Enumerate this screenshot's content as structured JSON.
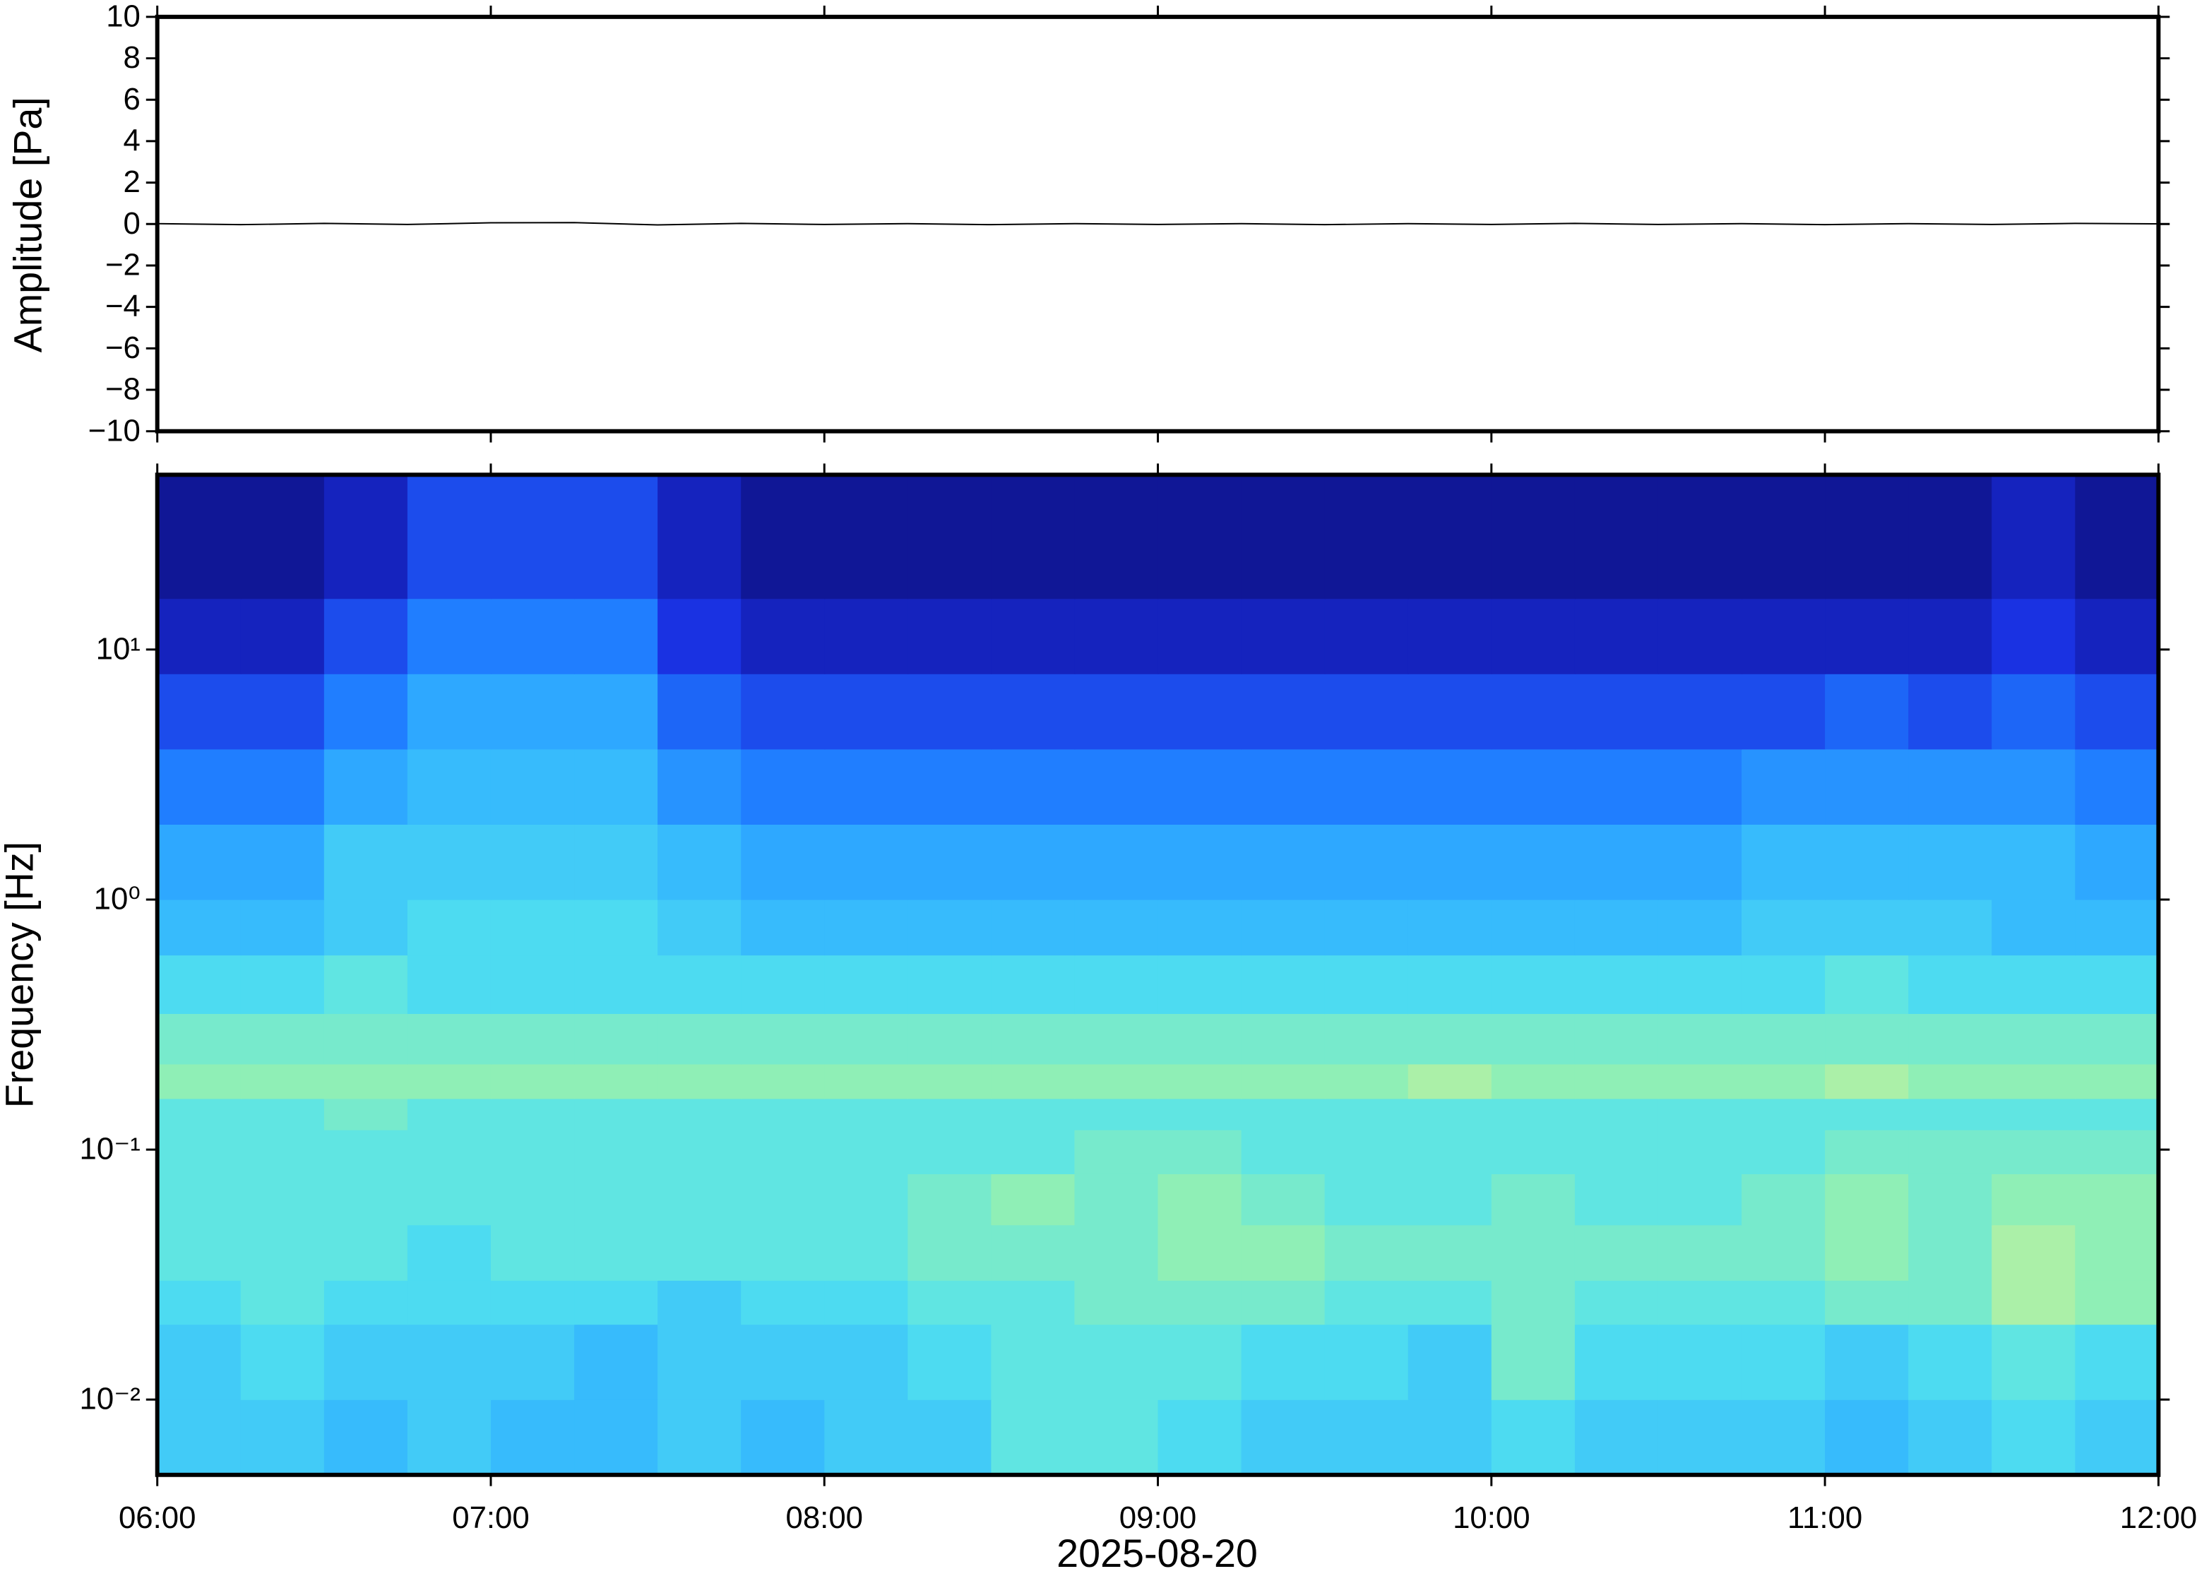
{
  "chart_data": [
    {
      "type": "line",
      "ylabel": "Amplitude [Pa]",
      "color": "#000000",
      "x": [
        6,
        6.25,
        6.5,
        6.75,
        7,
        7.25,
        7.5,
        7.75,
        8,
        8.25,
        8.5,
        8.75,
        9,
        9.25,
        9.5,
        9.75,
        10,
        10.25,
        10.5,
        10.75,
        11,
        11.25,
        11.5,
        11.75,
        12
      ],
      "values": [
        0.02,
        -0.03,
        0.03,
        -0.02,
        0.06,
        0.07,
        -0.04,
        0.03,
        -0.02,
        0.02,
        -0.03,
        0.02,
        -0.02,
        0.02,
        -0.03,
        0.02,
        -0.02,
        0.03,
        -0.02,
        0.02,
        -0.03,
        0.02,
        -0.02,
        0.03,
        0.01
      ],
      "xlim": [
        6,
        12
      ],
      "ylim": [
        -10,
        10
      ],
      "yticks": [
        {
          "value": -10,
          "label": "−10"
        },
        {
          "value": -8,
          "label": "−8"
        },
        {
          "value": -6,
          "label": "−6"
        },
        {
          "value": -4,
          "label": "−4"
        },
        {
          "value": -2,
          "label": "−2"
        },
        0,
        2,
        4,
        6,
        8,
        10
      ]
    },
    {
      "type": "heatmap",
      "ylabel": "Frequency [Hz]",
      "xlabel": "2025-08-20",
      "ylog": true,
      "xlim": [
        6,
        12
      ],
      "ylim": [
        0.005,
        50
      ],
      "xticks": [
        {
          "value": 6,
          "label": "06:00"
        },
        {
          "value": 7,
          "label": "07:00"
        },
        {
          "value": 8,
          "label": "08:00"
        },
        {
          "value": 9,
          "label": "09:00"
        },
        {
          "value": 10,
          "label": "10:00"
        },
        {
          "value": 11,
          "label": "11:00"
        },
        {
          "value": 12,
          "label": "12:00"
        }
      ],
      "yticks": [
        {
          "value": 0.01,
          "label": "10⁻²"
        },
        {
          "value": 0.1,
          "label": "10⁻¹"
        },
        {
          "value": 1,
          "label": "10⁰"
        },
        {
          "value": 10,
          "label": "10¹"
        }
      ],
      "colormap": [
        "#0a0a6e",
        "#1a2ee0",
        "#1e78ff",
        "#32b4ff",
        "#52e2ee",
        "#96f0b0",
        "#e8f08e",
        "#f8be6e"
      ],
      "zlim": [
        0,
        10
      ],
      "x": [
        6,
        6.25,
        6.5,
        6.75,
        7,
        7.25,
        7.5,
        7.75,
        8,
        8.25,
        8.5,
        8.75,
        9,
        9.25,
        9.5,
        9.75,
        10,
        10.25,
        10.5,
        10.75,
        11,
        11.25,
        11.5,
        11.75,
        12
      ],
      "y": [
        0.005,
        0.01,
        0.02,
        0.03,
        0.05,
        0.08,
        0.12,
        0.16,
        0.22,
        0.35,
        0.6,
        1,
        2,
        4,
        8,
        16,
        50
      ],
      "z": [
        [
          5,
          5,
          4.5,
          5,
          4.5,
          4.5,
          5,
          4.5,
          5,
          5,
          6,
          6,
          5.5,
          5,
          5,
          5,
          5.5,
          5,
          5,
          5,
          4.5,
          5,
          5.5,
          5
        ],
        [
          5,
          5.5,
          5,
          5,
          5,
          4.5,
          5,
          5,
          5,
          5.5,
          6,
          6,
          6,
          5.5,
          5.5,
          5,
          6.5,
          5.5,
          5.5,
          5.5,
          5,
          5.5,
          6,
          5.5
        ],
        [
          5.5,
          6,
          5.5,
          5.5,
          5.5,
          5.5,
          5,
          5.5,
          5.5,
          6,
          6,
          6.5,
          6.5,
          6.5,
          6,
          6,
          6.5,
          6,
          6,
          6,
          6.5,
          6.5,
          7.5,
          7
        ],
        [
          6,
          6,
          6,
          5.5,
          6,
          6,
          6,
          6,
          6,
          6.5,
          6.5,
          6.5,
          7,
          7,
          6.5,
          6.5,
          6.5,
          6.5,
          6.5,
          6.5,
          7,
          6.5,
          7.5,
          7
        ],
        [
          6,
          6,
          6,
          6,
          6,
          6,
          6,
          6,
          6,
          6.5,
          7,
          6.5,
          7,
          6.5,
          6,
          6,
          6.5,
          6,
          6,
          6.5,
          7,
          6.5,
          7,
          7
        ],
        [
          6,
          6,
          6,
          6,
          6,
          6,
          6,
          6,
          6,
          6,
          6,
          6.5,
          6.5,
          6,
          6,
          6,
          6,
          6,
          6,
          6,
          6.5,
          6.5,
          6.5,
          6.5
        ],
        [
          6,
          6,
          6.5,
          6,
          6,
          6,
          6,
          6,
          6,
          6,
          6,
          6,
          6,
          6,
          6,
          6,
          6,
          6,
          6,
          6,
          6,
          6,
          6,
          6
        ],
        [
          7,
          7,
          7,
          7,
          7,
          7,
          7,
          7,
          7,
          7,
          7,
          7,
          7,
          7,
          7,
          7.5,
          7,
          7,
          7,
          7,
          7.5,
          7,
          7,
          7
        ],
        [
          6.5,
          6.5,
          6.5,
          6.5,
          6.5,
          6.5,
          6.5,
          6.5,
          6.5,
          6.5,
          6.5,
          6.5,
          6.5,
          6.5,
          6.5,
          6.5,
          6.5,
          6.5,
          6.5,
          6.5,
          6.5,
          6.5,
          6.5,
          6.5
        ],
        [
          5.5,
          5.5,
          6,
          5.5,
          5.5,
          5.5,
          5.5,
          5.5,
          5.5,
          5.5,
          5.5,
          5.5,
          5.5,
          5.5,
          5.5,
          5.5,
          5.5,
          5.5,
          5.5,
          5.5,
          6,
          5.5,
          5.5,
          5.5
        ],
        [
          4.5,
          4.5,
          5,
          5.5,
          5.5,
          5.5,
          5,
          4.5,
          4.5,
          4.5,
          4.5,
          4.5,
          4.5,
          4.5,
          4.5,
          4.5,
          4.5,
          4.5,
          4.5,
          5,
          5,
          5,
          4.5,
          4.5
        ],
        [
          4,
          4,
          5,
          5,
          5,
          5,
          4.5,
          4,
          4,
          4,
          4,
          4,
          4,
          4,
          4,
          4,
          4,
          4,
          4,
          4.5,
          4.5,
          4.5,
          4.5,
          4
        ],
        [
          3,
          3,
          4,
          4.5,
          4.5,
          4.5,
          3.5,
          3,
          3,
          3,
          3,
          3,
          3,
          3,
          3,
          3,
          3,
          3,
          3,
          3.5,
          3.5,
          3.5,
          3.5,
          3
        ],
        [
          2,
          2,
          3,
          4,
          4,
          4,
          2.5,
          2,
          2,
          2,
          2,
          2,
          2,
          2,
          2,
          2,
          2,
          2,
          2,
          2,
          2.5,
          2,
          2.5,
          2
        ],
        [
          1,
          1,
          2,
          3,
          3,
          3,
          1.5,
          1,
          1,
          1,
          1,
          1,
          1,
          1,
          1,
          1,
          1,
          1,
          1,
          1,
          1,
          1,
          1.5,
          1
        ],
        [
          0.5,
          0.5,
          1,
          2,
          2,
          2,
          1,
          0.5,
          0.5,
          0.5,
          0.5,
          0.5,
          0.5,
          0.5,
          0.5,
          0.5,
          0.5,
          0.5,
          0.5,
          0.5,
          0.5,
          0.5,
          1,
          0.5
        ]
      ]
    }
  ]
}
